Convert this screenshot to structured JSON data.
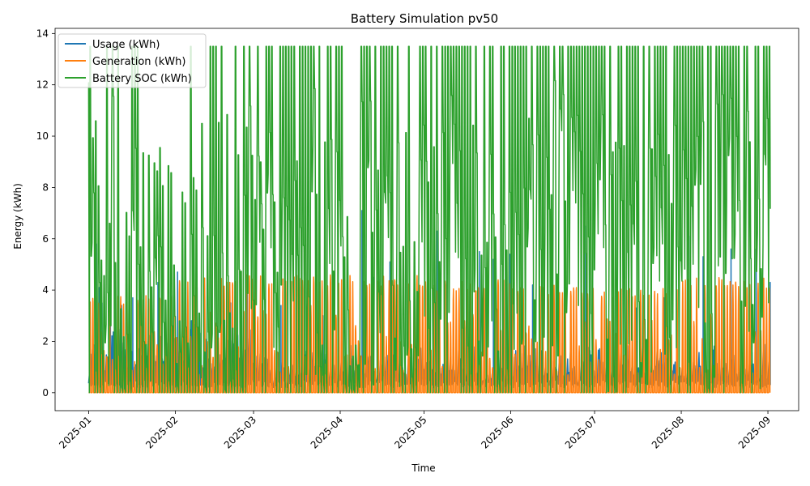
{
  "chart_data": {
    "type": "line",
    "title": "Battery Simulation pv50",
    "xlabel": "Time",
    "ylabel": "Energy (kWh)",
    "xlim": [
      "2024-12-20",
      "2025-09-12"
    ],
    "ylim": [
      -0.7,
      14.2
    ],
    "x_ticks": [
      "2025-01",
      "2025-02",
      "2025-03",
      "2025-04",
      "2025-05",
      "2025-06",
      "2025-07",
      "2025-08",
      "2025-09"
    ],
    "y_ticks": [
      0,
      2,
      4,
      6,
      8,
      10,
      12,
      14
    ],
    "grid": false,
    "legend_position": "top-left",
    "x_range": [
      "2025-01-01",
      "2025-09-01"
    ],
    "series": [
      {
        "name": "Usage (kWh)",
        "color": "#1f77b4",
        "points": [
          [
            "2025-01-01",
            1.5
          ],
          [
            "2025-01-02",
            1.0
          ],
          [
            "2025-01-03",
            5.8
          ],
          [
            "2025-01-04",
            4.1
          ],
          [
            "2025-01-05",
            3.5
          ],
          [
            "2025-01-08",
            3.2
          ],
          [
            "2025-01-12",
            3.4
          ],
          [
            "2025-01-16",
            3.7
          ],
          [
            "2025-01-25",
            4.3
          ],
          [
            "2025-01-30",
            3.8
          ],
          [
            "2025-02-01",
            4.7
          ],
          [
            "2025-02-08",
            4.1
          ],
          [
            "2025-02-15",
            2.5
          ],
          [
            "2025-02-20",
            3.5
          ],
          [
            "2025-02-26",
            4.3
          ],
          [
            "2025-03-10",
            3.4
          ],
          [
            "2025-03-25",
            3.0
          ],
          [
            "2025-04-08",
            7.1
          ],
          [
            "2025-04-12",
            4.5
          ],
          [
            "2025-04-18",
            5.1
          ],
          [
            "2025-05-05",
            6.3
          ],
          [
            "2025-05-20",
            5.5
          ],
          [
            "2025-05-25",
            5.2
          ],
          [
            "2025-05-31",
            5.4
          ],
          [
            "2025-06-08",
            4.2
          ],
          [
            "2025-06-27",
            6.5
          ],
          [
            "2025-07-15",
            3.3
          ],
          [
            "2025-07-25",
            3.7
          ],
          [
            "2025-08-03",
            6.1
          ],
          [
            "2025-08-08",
            5.3
          ],
          [
            "2025-08-18",
            5.6
          ],
          [
            "2025-08-27",
            5.6
          ],
          [
            "2025-09-01",
            4.3
          ]
        ]
      },
      {
        "name": "Generation (kWh)",
        "color": "#ff7f0e",
        "monthly_peak": [
          [
            "2025-01",
            3.8
          ],
          [
            "2025-02",
            4.6
          ],
          [
            "2025-03",
            4.6
          ],
          [
            "2025-04",
            4.6
          ],
          [
            "2025-05",
            4.4
          ],
          [
            "2025-06",
            4.2
          ],
          [
            "2025-07",
            4.1
          ],
          [
            "2025-08",
            4.5
          ],
          [
            "2025-09",
            4.3
          ]
        ],
        "min": 0
      },
      {
        "name": "Battery SOC (kWh)",
        "color": "#2ca02c",
        "max": 13.5,
        "min": 0
      }
    ]
  }
}
